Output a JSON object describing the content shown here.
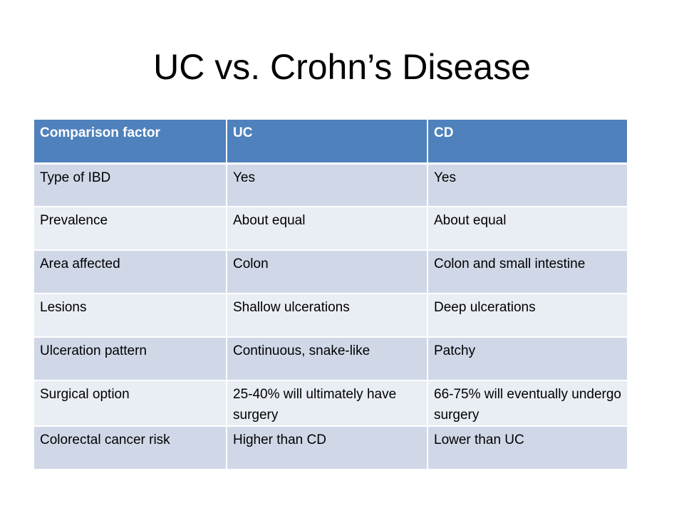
{
  "slide": {
    "title": "UC vs. Crohn’s Disease"
  },
  "table": {
    "headers": [
      "Comparison factor",
      "UC",
      "CD"
    ],
    "rows": [
      [
        "Type of IBD",
        "Yes",
        "Yes"
      ],
      [
        "Prevalence",
        "About equal",
        "About equal"
      ],
      [
        "Area affected",
        "Colon",
        "Colon and small intestine"
      ],
      [
        "Lesions",
        "Shallow ulcerations",
        "Deep ulcerations"
      ],
      [
        "Ulceration pattern",
        "Continuous, snake-like",
        "Patchy"
      ],
      [
        "Surgical option",
        "25-40% will ultimately have surgery",
        "66-75% will eventually undergo surgery"
      ],
      [
        "Colorectal cancer risk",
        "Higher than CD",
        "Lower than UC"
      ]
    ]
  },
  "colors": {
    "header_bg": "#4f81bd",
    "header_text": "#ffffff",
    "row_dark": "#d0d8e8",
    "row_light": "#e9edf4",
    "text": "#000000"
  }
}
